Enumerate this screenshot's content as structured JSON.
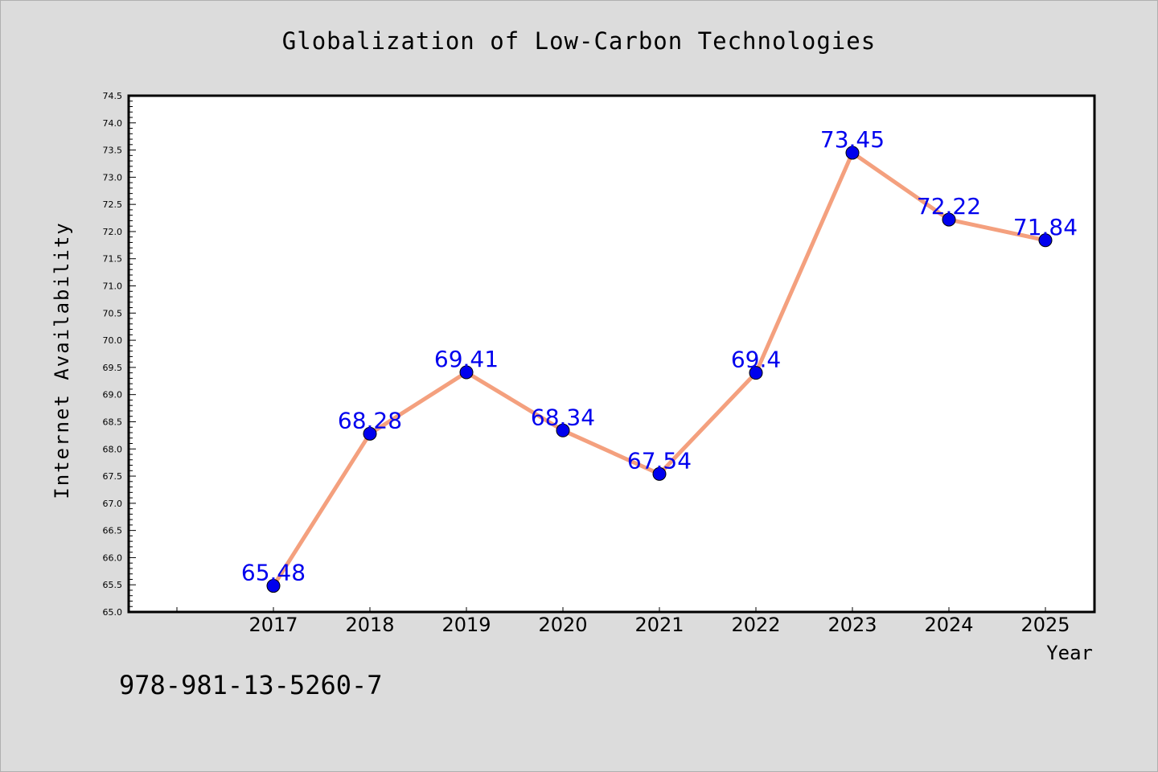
{
  "chart_data": {
    "type": "line",
    "title": "Globalization of Low-Carbon Technologies",
    "xlabel": "Year",
    "ylabel": "Internet Availability",
    "categories": [
      "2017",
      "2018",
      "2019",
      "2020",
      "2021",
      "2022",
      "2023",
      "2024",
      "2025"
    ],
    "series": [
      {
        "values": [
          65.48,
          68.28,
          69.41,
          68.34,
          67.54,
          69.4,
          73.45,
          72.22,
          71.84
        ],
        "data_labels": [
          "65.48",
          "68.28",
          "69.41",
          "68.34",
          "67.54",
          "69.4",
          "73.45",
          "72.22",
          "71.84"
        ],
        "line_color": "#f4a07e",
        "marker_color": "#0000ee",
        "label_color": "#0000ee"
      }
    ],
    "ylim": [
      65.0,
      74.5
    ],
    "y_ticks": [
      "65.0",
      "65.5",
      "66.0",
      "66.5",
      "67.0",
      "67.5",
      "68.0",
      "68.5",
      "69.0",
      "69.5",
      "70.0",
      "70.5",
      "71.0",
      "71.5",
      "72.0",
      "72.5",
      "73.0",
      "73.5",
      "74.0",
      "74.5"
    ],
    "grid": false,
    "legend": "none"
  },
  "footer_text": "978-981-13-5260-7",
  "colors": {
    "background": "#dcdcdc",
    "plot_background": "#ffffff",
    "axis": "#000000"
  }
}
